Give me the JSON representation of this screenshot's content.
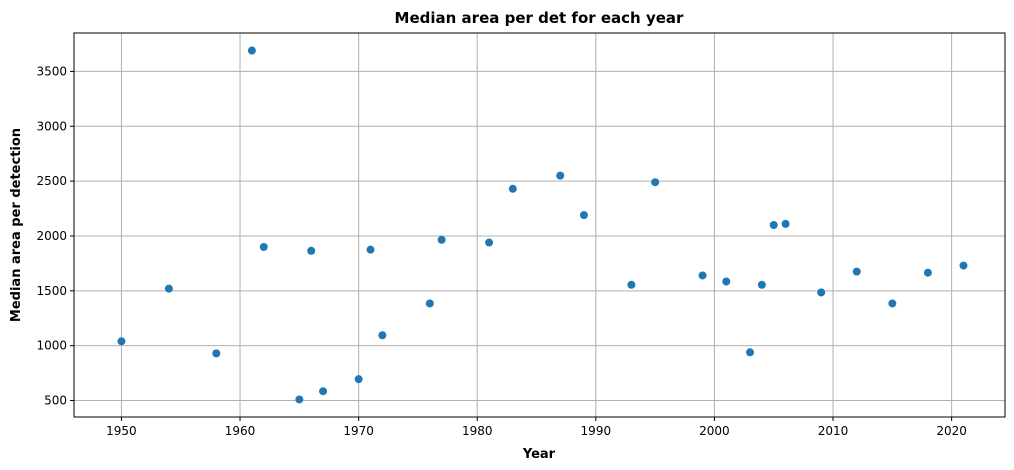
{
  "chart_data": {
    "type": "scatter",
    "title": "Median area per det for each year",
    "xlabel": "Year",
    "ylabel": "Median area per detection",
    "xlim": [
      1946,
      2024.5
    ],
    "ylim": [
      350,
      3850
    ],
    "xticks": [
      1950,
      1960,
      1970,
      1980,
      1990,
      2000,
      2010,
      2020
    ],
    "yticks": [
      500,
      1000,
      1500,
      2000,
      2500,
      3000,
      3500
    ],
    "grid": true,
    "marker_color": "#1f77b4",
    "points": [
      {
        "x": 1950,
        "y": 1040
      },
      {
        "x": 1954,
        "y": 1520
      },
      {
        "x": 1958,
        "y": 930
      },
      {
        "x": 1961,
        "y": 3690
      },
      {
        "x": 1962,
        "y": 1900
      },
      {
        "x": 1965,
        "y": 510
      },
      {
        "x": 1966,
        "y": 1865
      },
      {
        "x": 1967,
        "y": 585
      },
      {
        "x": 1970,
        "y": 695
      },
      {
        "x": 1971,
        "y": 1875
      },
      {
        "x": 1972,
        "y": 1095
      },
      {
        "x": 1976,
        "y": 1385
      },
      {
        "x": 1977,
        "y": 1965
      },
      {
        "x": 1981,
        "y": 1940
      },
      {
        "x": 1983,
        "y": 2430
      },
      {
        "x": 1987,
        "y": 2550
      },
      {
        "x": 1989,
        "y": 2190
      },
      {
        "x": 1993,
        "y": 1555
      },
      {
        "x": 1995,
        "y": 2490
      },
      {
        "x": 1999,
        "y": 1640
      },
      {
        "x": 2001,
        "y": 1585
      },
      {
        "x": 2003,
        "y": 940
      },
      {
        "x": 2004,
        "y": 1555
      },
      {
        "x": 2005,
        "y": 2100
      },
      {
        "x": 2006,
        "y": 2110
      },
      {
        "x": 2009,
        "y": 1485
      },
      {
        "x": 2012,
        "y": 1675
      },
      {
        "x": 2015,
        "y": 1385
      },
      {
        "x": 2018,
        "y": 1665
      },
      {
        "x": 2021,
        "y": 1730
      }
    ]
  }
}
